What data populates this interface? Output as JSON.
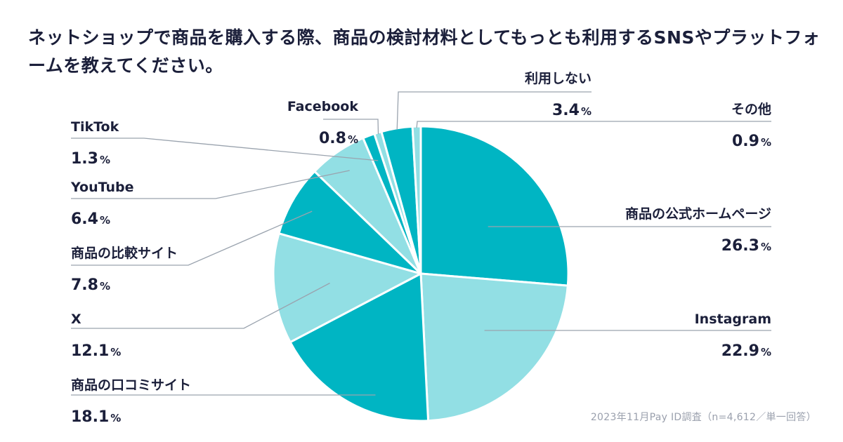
{
  "title": "ネットショップで商品を購入する際、商品の検討材料としてもっとも利用するSNSやプラットフォームを教えてください。",
  "source": "2023年11月Pay ID調査（n=4,612／単一回答）",
  "colors": {
    "dark": "#00b5c3",
    "light": "#92dfe4",
    "leader": "#9aa3ae",
    "text": "#1b1f3a"
  },
  "chart_data": {
    "type": "pie",
    "title": "ネットショップで商品を購入する際、商品の検討材料としてもっとも利用するSNSやプラットフォームを教えてください。",
    "unit": "%",
    "categories": [
      "商品の公式ホームページ",
      "Instagram",
      "商品の口コミサイト",
      "X",
      "商品の比較サイト",
      "YouTube",
      "TikTok",
      "Facebook",
      "利用しない",
      "その他"
    ],
    "values": [
      26.3,
      22.9,
      18.1,
      12.1,
      7.8,
      6.4,
      1.3,
      0.8,
      3.4,
      0.9
    ],
    "value_labels": [
      "26.3",
      "22.9",
      "18.1",
      "12.1",
      "7.8",
      "6.4",
      "1.3",
      "0.8",
      "3.4",
      "0.9"
    ],
    "slice_colors": [
      "#00b5c3",
      "#92dfe4",
      "#00b5c3",
      "#92dfe4",
      "#00b5c3",
      "#92dfe4",
      "#00b5c3",
      "#92dfe4",
      "#00b5c3",
      "#92dfe4"
    ],
    "start": "12 o'clock",
    "direction": "clockwise"
  }
}
